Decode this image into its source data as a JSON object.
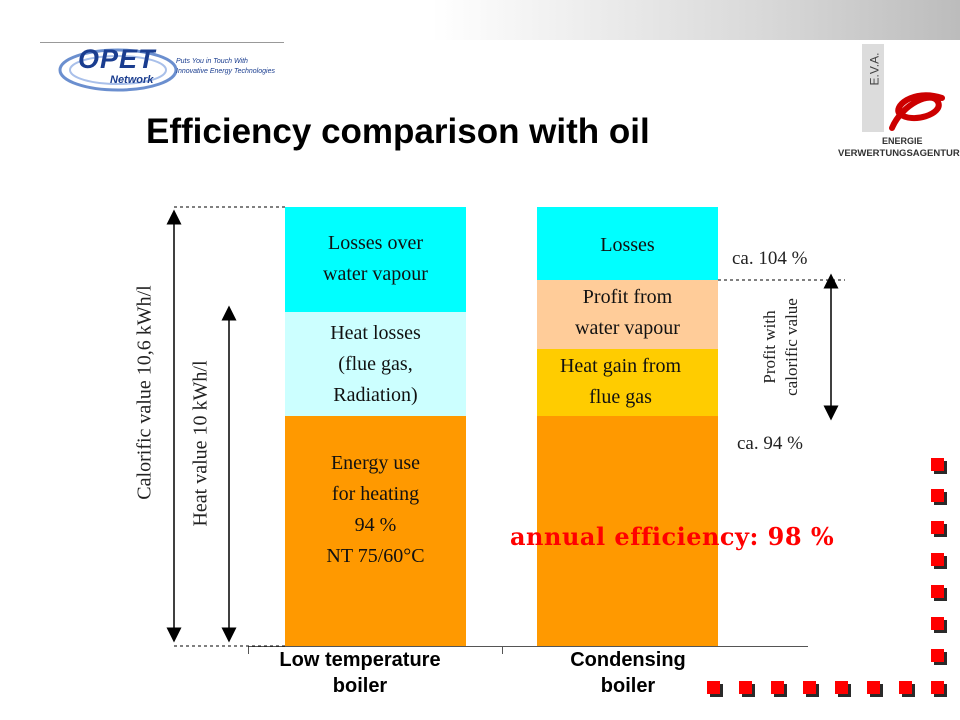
{
  "title": "Efficiency comparison with oil",
  "logo_left": {
    "name": "OPET",
    "sub": "Network",
    "tagline_1": "Puts You in Touch With",
    "tagline_2": "Innovative Energy Technologies"
  },
  "logo_right": {
    "vertical_text": "E.V.A.",
    "line1": "ENERGIE",
    "line2": "VERWERTUNGSAGENTUR"
  },
  "colors": {
    "losses": "#00ffff",
    "heat_losses": "#ccffff",
    "energy_use": "#ff9900",
    "profit_vapour": "#ffcc99",
    "heat_gain": "#ffcc00",
    "accent_red": "#ff0000"
  },
  "bars": {
    "low": {
      "losses_label": [
        "Losses over",
        "water vapour"
      ],
      "heat_losses_label": [
        "Heat losses",
        "(flue gas,",
        "Radiation)"
      ],
      "energy_label": [
        "Energy use",
        "for heating",
        "94 %",
        "NT 75/60°C"
      ]
    },
    "condensing": {
      "losses_label": [
        "Losses"
      ],
      "profit_label": [
        "Profit from",
        "water vapour"
      ],
      "gain_label": [
        "Heat gain from",
        "flue gas"
      ]
    }
  },
  "axis_labels": {
    "calorific": "Calorific value 10,6 kWh/l",
    "heat": "Heat value 10 kWh/l"
  },
  "annotations": {
    "ca104": "ca. 104 %",
    "ca94": "ca. 94 %",
    "profit_caption": [
      "Profit with",
      "calorific value"
    ]
  },
  "efficiency": "annual efficiency: 98 %",
  "categories": [
    "Low temperature",
    "boiler",
    "Condensing",
    "boiler"
  ]
}
